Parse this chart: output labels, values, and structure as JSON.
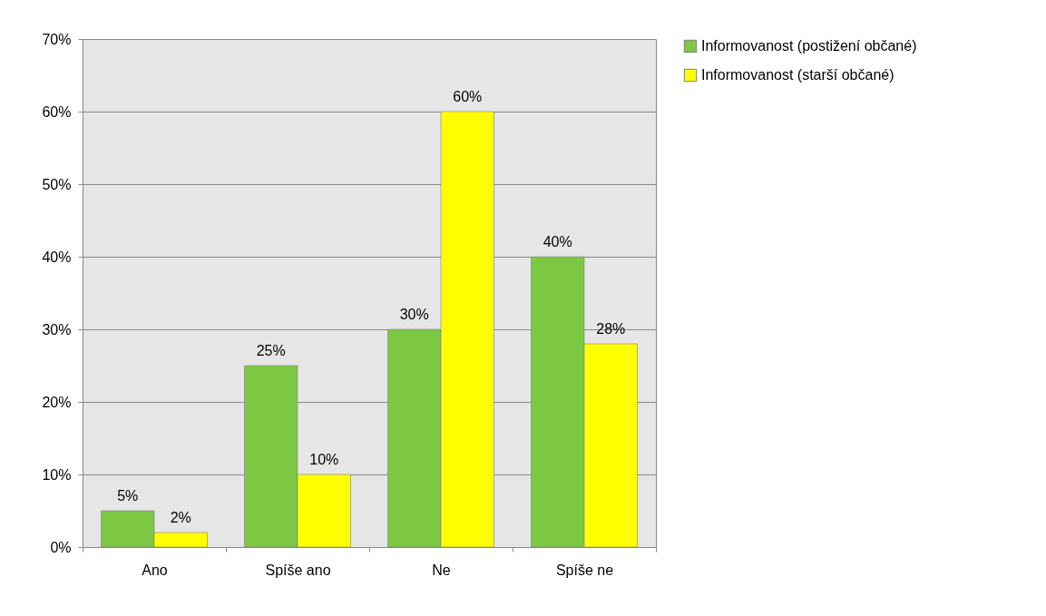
{
  "chart_data": {
    "type": "bar",
    "categories": [
      "Ano",
      "Spíše ano",
      "Ne",
      "Spíše ne"
    ],
    "series": [
      {
        "name": "Informovanost  (postižení občané)",
        "color": "#7cc843",
        "values": [
          5,
          25,
          30,
          40
        ],
        "value_labels": [
          "5%",
          "25%",
          "30%",
          "40%"
        ]
      },
      {
        "name": "Informovanost  (starší občané)",
        "color": "#ffff00",
        "values": [
          2,
          10,
          60,
          28
        ],
        "value_labels": [
          "2%",
          "10%",
          "60%",
          "28%"
        ]
      }
    ],
    "ylim": [
      0,
      70
    ],
    "yticks": [
      {
        "value": 0,
        "label": "0%"
      },
      {
        "value": 10,
        "label": "10%"
      },
      {
        "value": 20,
        "label": "20%"
      },
      {
        "value": 30,
        "label": "30%"
      },
      {
        "value": 40,
        "label": "40%"
      },
      {
        "value": 50,
        "label": "50%"
      },
      {
        "value": 60,
        "label": "60%"
      },
      {
        "value": 70,
        "label": "70%"
      }
    ],
    "grid": "y",
    "legend": "right"
  }
}
